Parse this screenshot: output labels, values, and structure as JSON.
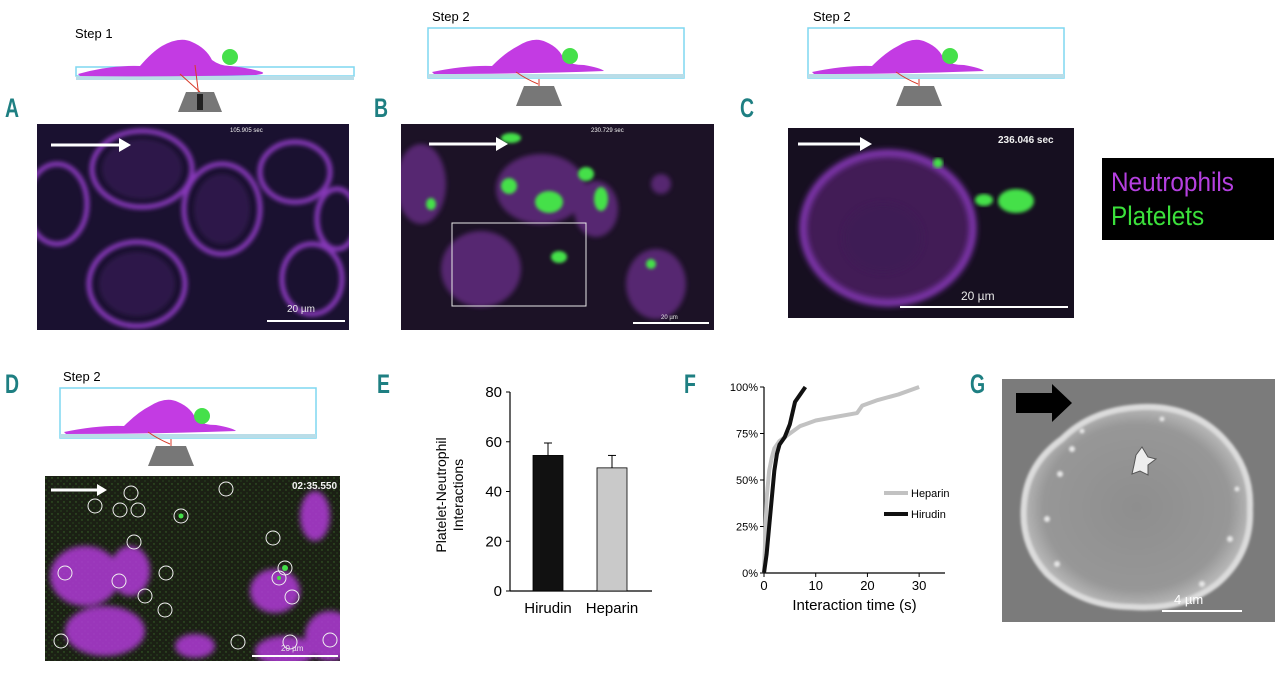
{
  "panels": {
    "A": {
      "label": "A",
      "step": "Step 1",
      "timestamp": "105.905 sec",
      "scalebar": "20 µm"
    },
    "B": {
      "label": "B",
      "step": "Step 2",
      "timestamp": "230.729 sec",
      "scalebar": "20 µm"
    },
    "C": {
      "label": "C",
      "step": "Step 2",
      "timestamp": "236.046 sec",
      "scalebar": "20 µm"
    },
    "D": {
      "label": "D",
      "step": "Step 2",
      "timestamp": "02:35.550",
      "scalebar": "20 µm"
    },
    "E": {
      "label": "E"
    },
    "F": {
      "label": "F"
    },
    "G": {
      "label": "G",
      "scalebar": "4 µm"
    }
  },
  "legend": {
    "neutrophils": "Neutrophils",
    "platelets": "Platelets",
    "neutrophil_color": "#b540e0",
    "platelet_color": "#3be03b"
  },
  "colors": {
    "panel_label": "#1e7f82",
    "cell": "#c33be3",
    "platelet": "#45e04a",
    "chamber": "#7fd7f0"
  },
  "chart_data": [
    {
      "type": "bar",
      "categories": [
        "Hirudin",
        "Heparin"
      ],
      "values": [
        54.5,
        49.5
      ],
      "errors": [
        5,
        5
      ],
      "bar_colors": [
        "#111111",
        "#c9c9c9"
      ],
      "ylabel": "Platelet-Neutrophil Interactions",
      "xlabel": "",
      "ylim": [
        0,
        80
      ],
      "yticks": [
        0,
        20,
        40,
        60,
        80
      ]
    },
    {
      "type": "line",
      "xlabel": "Interaction time (s)",
      "ylabel": "",
      "xlim": [
        0,
        35
      ],
      "ylim": [
        0,
        100
      ],
      "xticks": [
        0,
        10,
        20,
        30
      ],
      "yticks": [
        "0%",
        "25%",
        "50%",
        "75%",
        "100%"
      ],
      "legend_position": "right",
      "series": [
        {
          "name": "Heparin",
          "color": "#c2c2c2",
          "x": [
            0,
            0.5,
            1,
            1.5,
            2,
            3,
            4,
            5,
            6,
            7,
            8,
            10,
            14,
            18,
            19,
            22,
            26,
            30
          ],
          "y": [
            0,
            40,
            55,
            62,
            67,
            71,
            73,
            75,
            77,
            79,
            80,
            82,
            84,
            86,
            90,
            93,
            96,
            100
          ]
        },
        {
          "name": "Hirudin",
          "color": "#111111",
          "x": [
            0,
            0.5,
            1,
            1.5,
            2,
            2.5,
            3,
            4,
            5,
            6,
            7,
            8
          ],
          "y": [
            0,
            10,
            25,
            40,
            55,
            64,
            69,
            73,
            80,
            92,
            96,
            100
          ]
        }
      ]
    }
  ]
}
